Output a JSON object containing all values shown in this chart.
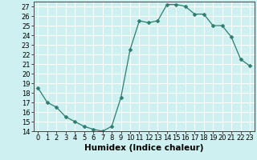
{
  "x": [
    0,
    1,
    2,
    3,
    4,
    5,
    6,
    7,
    8,
    9,
    10,
    11,
    12,
    13,
    14,
    15,
    16,
    17,
    18,
    19,
    20,
    21,
    22,
    23
  ],
  "y": [
    18.5,
    17.0,
    16.5,
    15.5,
    15.0,
    14.5,
    14.2,
    14.0,
    14.5,
    17.5,
    22.5,
    25.5,
    25.3,
    25.5,
    27.2,
    27.2,
    27.0,
    26.2,
    26.2,
    25.0,
    25.0,
    23.8,
    21.5,
    20.8
  ],
  "line_color": "#2e7d6e",
  "marker": "D",
  "marker_size": 2.5,
  "bg_color": "#cef0f0",
  "grid_color": "#ffffff",
  "xlabel": "Humidex (Indice chaleur)",
  "ylim": [
    14,
    27.5
  ],
  "xlim": [
    -0.5,
    23.5
  ],
  "yticks": [
    14,
    15,
    16,
    17,
    18,
    19,
    20,
    21,
    22,
    23,
    24,
    25,
    26,
    27
  ],
  "xticks": [
    0,
    1,
    2,
    3,
    4,
    5,
    6,
    7,
    8,
    9,
    10,
    11,
    12,
    13,
    14,
    15,
    16,
    17,
    18,
    19,
    20,
    21,
    22,
    23
  ],
  "tick_fontsize": 6,
  "xlabel_fontsize": 7.5
}
